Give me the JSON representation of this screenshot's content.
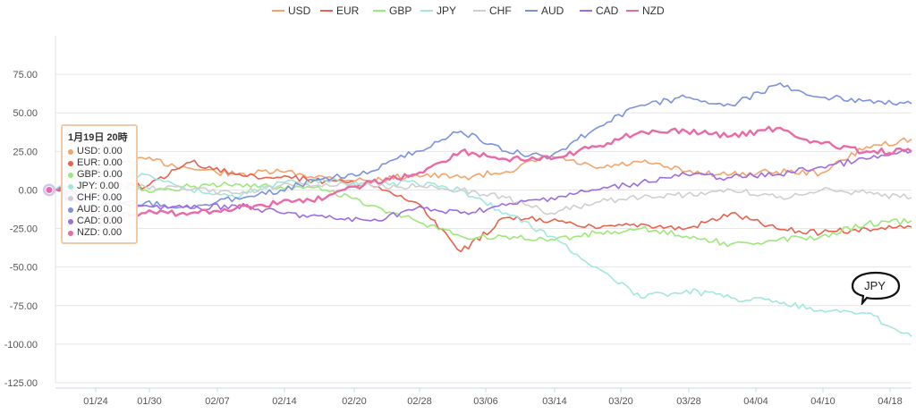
{
  "chart_data": {
    "type": "line",
    "ylim": [
      -125,
      100
    ],
    "yticks": [
      "75.00",
      "50.00",
      "25.00",
      "0.00",
      "-25.00",
      "-50.00",
      "-75.00",
      "-100.00",
      "-125.00"
    ],
    "xticks": [
      "01/24",
      "01/30",
      "02/07",
      "02/14",
      "02/20",
      "02/28",
      "03/06",
      "03/14",
      "03/20",
      "03/28",
      "04/04",
      "04/10",
      "04/18"
    ],
    "grid": true,
    "legend_position": "top",
    "series": [
      {
        "name": "USD",
        "color": "#f2a46b",
        "values": [
          0,
          15,
          20,
          14,
          10,
          12,
          8,
          6,
          10,
          8,
          12,
          22,
          14,
          18,
          12,
          10,
          12,
          11,
          28,
          33
        ]
      },
      {
        "name": "EUR",
        "color": "#e8624e",
        "values": [
          0,
          5,
          2,
          18,
          10,
          8,
          6,
          3,
          -8,
          -40,
          -18,
          -20,
          -25,
          -22,
          -25,
          -15,
          -25,
          -28,
          -25,
          -24
        ]
      },
      {
        "name": "GBP",
        "color": "#9de87a",
        "values": [
          0,
          3,
          0,
          2,
          4,
          2,
          0,
          -10,
          -20,
          -30,
          -30,
          -32,
          -28,
          -25,
          -30,
          -35,
          -33,
          -30,
          -22,
          -20
        ]
      },
      {
        "name": "JPY",
        "color": "#a3e6de",
        "values": [
          0,
          12,
          10,
          0,
          -5,
          5,
          6,
          4,
          5,
          0,
          -15,
          -30,
          -50,
          -70,
          -65,
          -70,
          -72,
          -78,
          -80,
          -95
        ]
      },
      {
        "name": "CHF",
        "color": "#cfcfcf",
        "values": [
          0,
          5,
          2,
          0,
          -2,
          3,
          4,
          3,
          2,
          0,
          -5,
          -15,
          -8,
          -5,
          -3,
          0,
          -5,
          0,
          -2,
          -5
        ]
      },
      {
        "name": "AUD",
        "color": "#7b93df",
        "values": [
          0,
          -10,
          -8,
          -12,
          -5,
          0,
          8,
          12,
          25,
          38,
          25,
          22,
          40,
          55,
          60,
          55,
          68,
          60,
          58,
          56
        ]
      },
      {
        "name": "CAD",
        "color": "#9d6ce2",
        "values": [
          0,
          -5,
          -10,
          -12,
          -10,
          -15,
          -18,
          -20,
          -12,
          -15,
          -10,
          -5,
          0,
          5,
          10,
          8,
          10,
          15,
          20,
          25
        ]
      },
      {
        "name": "NZD",
        "color": "#ea6aa7",
        "values": [
          0,
          -18,
          -15,
          -15,
          -12,
          -8,
          -5,
          5,
          10,
          25,
          20,
          20,
          28,
          38,
          38,
          35,
          40,
          30,
          25,
          25
        ]
      }
    ],
    "tooltip": {
      "title": "1月19日 20時",
      "rows": [
        "USD: 0.00",
        "EUR: 0.00",
        "GBP: 0.00",
        "JPY: 0.00",
        "CHF: 0.00",
        "AUD: 0.00",
        "CAD: 0.00",
        "NZD: 0.00"
      ]
    },
    "annotation": "JPY"
  }
}
